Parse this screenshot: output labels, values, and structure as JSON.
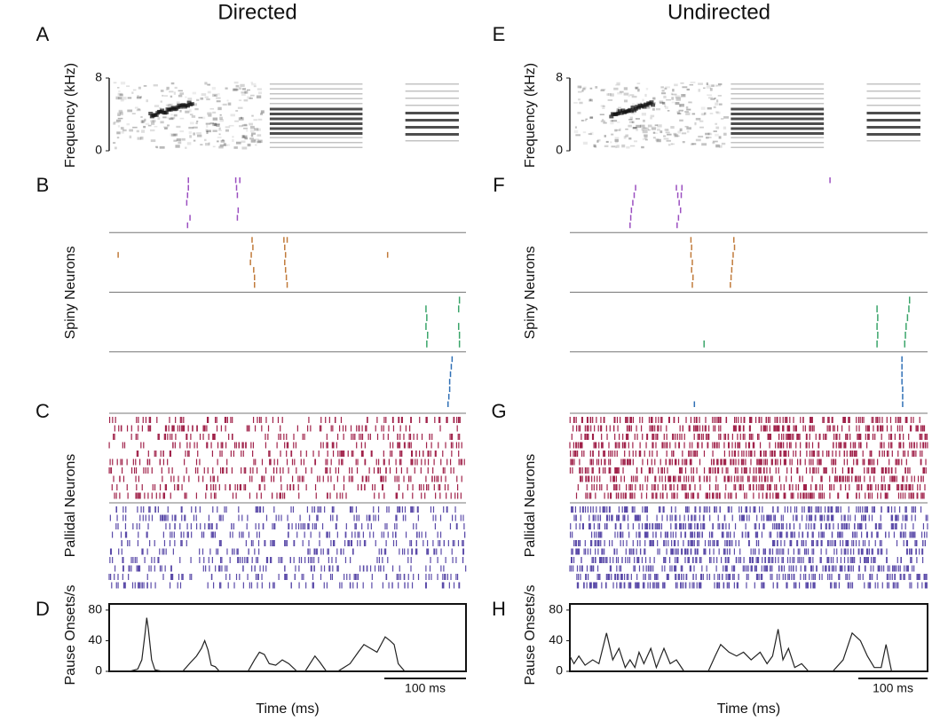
{
  "chart_data": [
    {
      "type": "spectrogram",
      "panel": "A",
      "title": "Directed",
      "ylabel": "Frequency (kHz)",
      "xlim": [
        0,
        437
      ],
      "ylim": [
        0,
        8
      ],
      "yticks": [
        0,
        8
      ]
    },
    {
      "type": "raster",
      "panel": "B",
      "ylabel": "Spiny Neurons",
      "xlim": [
        0,
        437
      ],
      "series": [
        {
          "color": "#9b4fc0",
          "trials": [
            [
              97,
              155,
              160
            ],
            [
              97,
              156
            ],
            [
              96,
              157
            ],
            [
              95
            ],
            [
              158
            ],
            [
              99,
              157
            ],
            [
              96
            ]
          ]
        },
        {
          "color": "#c07a3a",
          "trials": [
            [
              175,
              214,
              218
            ],
            [
              176,
              215
            ],
            [
              11,
              174,
              216,
              341
            ],
            [
              173,
              215
            ],
            [
              177,
              216
            ],
            [
              178,
              217
            ],
            [
              178,
              218
            ]
          ]
        },
        {
          "color": "#3aa56a",
          "trials": [
            [
              429
            ],
            [
              388,
              428
            ],
            [
              389
            ],
            [
              388,
              428
            ],
            [
              390,
              429
            ],
            [
              389,
              429
            ]
          ]
        },
        {
          "color": "#2f6fb5",
          "trials": [
            [
              420
            ],
            [
              419
            ],
            [
              418
            ],
            [
              417
            ],
            [
              417
            ],
            [
              416
            ],
            [
              415
            ]
          ]
        }
      ]
    },
    {
      "type": "raster-texture",
      "panel": "C",
      "ylabel": "Pallidal Neurons",
      "series": [
        {
          "color": "#a0224a"
        },
        {
          "color": "#5a4aa8"
        }
      ]
    },
    {
      "type": "line",
      "panel": "D",
      "ylabel": "Pause Onsets/s",
      "xlabel": "Time (ms)",
      "color": "#222",
      "xlim": [
        0,
        437
      ],
      "ylim": [
        0,
        88
      ],
      "yticks": [
        0,
        40,
        80
      ],
      "scalebar": {
        "value": 100,
        "label": "100 ms"
      },
      "x": [
        0,
        25,
        35,
        40,
        44,
        46,
        48,
        52,
        56,
        65,
        90,
        100,
        107,
        113,
        117,
        121,
        125,
        130,
        135,
        150,
        170,
        178,
        184,
        190,
        196,
        204,
        212,
        220,
        230,
        240,
        246,
        252,
        258,
        266,
        280,
        295,
        305,
        312,
        320,
        328,
        338,
        344,
        349,
        354,
        362,
        380,
        437
      ],
      "values": [
        0,
        0,
        3,
        15,
        50,
        70,
        55,
        15,
        2,
        0,
        0,
        12,
        20,
        30,
        40,
        28,
        8,
        6,
        0,
        0,
        0,
        15,
        25,
        22,
        10,
        8,
        15,
        10,
        0,
        0,
        10,
        20,
        12,
        0,
        0,
        10,
        25,
        35,
        30,
        25,
        45,
        40,
        35,
        10,
        0,
        0,
        0
      ]
    },
    {
      "type": "spectrogram",
      "panel": "E",
      "title": "Undirected",
      "ylabel": "Frequency (kHz)",
      "xlim": [
        0,
        517
      ],
      "ylim": [
        0,
        8
      ],
      "yticks": [
        0,
        8
      ]
    },
    {
      "type": "raster",
      "panel": "F",
      "ylabel": "Spiny Neurons",
      "xlim": [
        0,
        517
      ],
      "series": [
        {
          "color": "#9b4fc0",
          "trials": [
            [
              376
            ],
            [
              95,
              154,
              162
            ],
            [
              93,
              156,
              161
            ],
            [
              91,
              158
            ],
            [
              89,
              160
            ],
            [
              88,
              157
            ],
            [
              87,
              155
            ]
          ]
        },
        {
          "color": "#c07a3a",
          "trials": [
            [
              175,
              237
            ],
            [
              176,
              238
            ],
            [
              175,
              236
            ],
            [
              177,
              235
            ],
            [
              176,
              234
            ],
            [
              178,
              233
            ],
            [
              177,
              232
            ]
          ]
        },
        {
          "color": "#3aa56a",
          "trials": [
            [
              491
            ],
            [
              444,
              490
            ],
            [
              445,
              488
            ],
            [
              444,
              486
            ],
            [
              445,
              485
            ],
            [
              194,
              444,
              484
            ]
          ]
        },
        {
          "color": "#2f6fb5",
          "trials": [
            [
              480
            ],
            [
              480
            ],
            [
              480
            ],
            [
              480
            ],
            [
              481
            ],
            [
              481
            ],
            [
              180,
              481
            ]
          ]
        }
      ]
    },
    {
      "type": "raster-texture",
      "panel": "G",
      "ylabel": "Pallidal Neurons",
      "series": [
        {
          "color": "#a0224a"
        },
        {
          "color": "#5a4aa8"
        }
      ]
    },
    {
      "type": "line",
      "panel": "H",
      "ylabel": "Pause Onsets/s",
      "xlabel": "Time (ms)",
      "color": "#222",
      "xlim": [
        0,
        517
      ],
      "ylim": [
        0,
        88
      ],
      "yticks": [
        0,
        40,
        80
      ],
      "scalebar": {
        "value": 100,
        "label": "100 ms"
      },
      "x": [
        0,
        6,
        13,
        22,
        33,
        42,
        53,
        62,
        71,
        80,
        87,
        94,
        100,
        107,
        117,
        125,
        136,
        145,
        154,
        165,
        200,
        210,
        218,
        230,
        241,
        251,
        262,
        275,
        285,
        293,
        301,
        308,
        316,
        325,
        335,
        345,
        380,
        395,
        408,
        420,
        430,
        440,
        450,
        457,
        465,
        517
      ],
      "values": [
        20,
        10,
        20,
        8,
        15,
        10,
        50,
        15,
        30,
        5,
        15,
        5,
        25,
        10,
        30,
        5,
        30,
        10,
        15,
        0,
        0,
        20,
        35,
        25,
        20,
        25,
        15,
        25,
        10,
        20,
        55,
        15,
        30,
        5,
        10,
        0,
        0,
        15,
        50,
        40,
        20,
        5,
        5,
        35,
        0,
        0
      ]
    }
  ]
}
